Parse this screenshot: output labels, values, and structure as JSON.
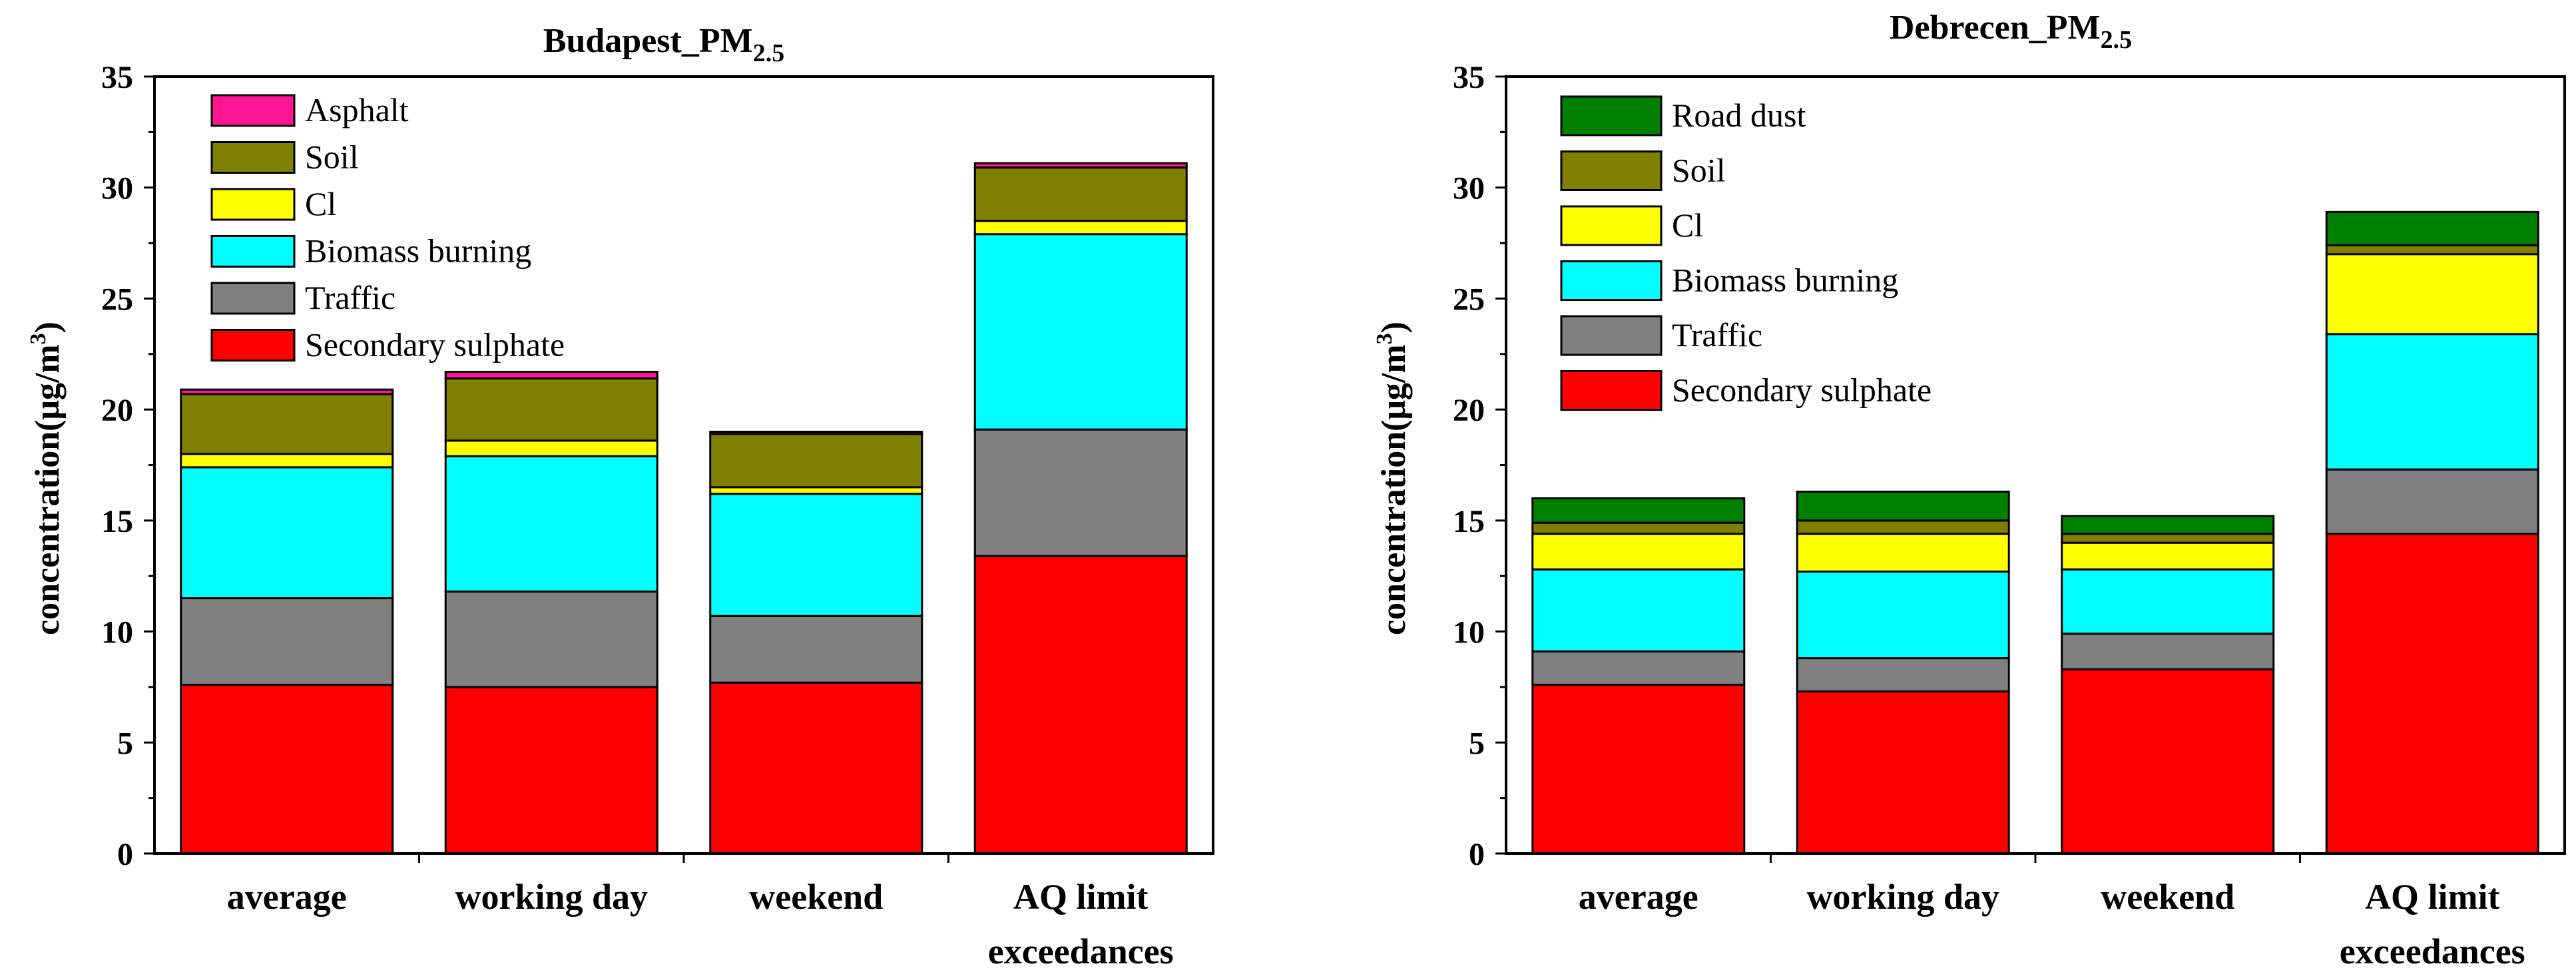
{
  "chart_data": [
    {
      "type": "bar",
      "stacked": true,
      "title": "Budapest_PM",
      "title_subscript": "2.5",
      "xlabel": "",
      "ylabel": "concentration(μg/m",
      "ylabel_superscript": "3",
      "ylabel_close": ")",
      "ylim": [
        0,
        35
      ],
      "yticks": [
        0,
        5,
        10,
        15,
        20,
        25,
        30,
        35
      ],
      "categories": [
        [
          "average"
        ],
        [
          "working day"
        ],
        [
          "weekend"
        ],
        [
          "AQ limit",
          "exceedances"
        ]
      ],
      "legend_position": "top-left",
      "series": [
        {
          "name": "Secondary sulphate",
          "color": "#ff0000",
          "values": [
            7.6,
            7.5,
            7.7,
            13.4
          ]
        },
        {
          "name": "Traffic",
          "color": "#808080",
          "values": [
            3.9,
            4.3,
            3.0,
            5.7
          ]
        },
        {
          "name": "Biomass burning",
          "color": "#00ffff",
          "values": [
            5.9,
            6.1,
            5.5,
            8.8
          ]
        },
        {
          "name": "Cl",
          "color": "#ffff00",
          "values": [
            0.6,
            0.7,
            0.3,
            0.6
          ]
        },
        {
          "name": "Soil",
          "color": "#808000",
          "values": [
            2.7,
            2.8,
            2.4,
            2.4
          ]
        },
        {
          "name": "Asphalt",
          "color": "#ff1493",
          "values": [
            0.2,
            0.3,
            0.1,
            0.2
          ]
        }
      ]
    },
    {
      "type": "bar",
      "stacked": true,
      "title": "Debrecen_PM",
      "title_subscript": "2.5",
      "xlabel": "",
      "ylabel": "concentration(μg/m",
      "ylabel_superscript": "3",
      "ylabel_close": ")",
      "ylim": [
        0,
        35
      ],
      "yticks": [
        0,
        5,
        10,
        15,
        20,
        25,
        30,
        35
      ],
      "categories": [
        [
          "average"
        ],
        [
          "working day"
        ],
        [
          "weekend"
        ],
        [
          "AQ limit",
          "exceedances"
        ]
      ],
      "legend_position": "top-left",
      "series": [
        {
          "name": "Secondary sulphate",
          "color": "#ff0000",
          "values": [
            7.6,
            7.3,
            8.3,
            14.4
          ]
        },
        {
          "name": "Traffic",
          "color": "#808080",
          "values": [
            1.5,
            1.5,
            1.6,
            2.9
          ]
        },
        {
          "name": "Biomass burning",
          "color": "#00ffff",
          "values": [
            3.7,
            3.9,
            2.9,
            6.1
          ]
        },
        {
          "name": "Cl",
          "color": "#ffff00",
          "values": [
            1.6,
            1.7,
            1.2,
            3.6
          ]
        },
        {
          "name": "Soil",
          "color": "#808000",
          "values": [
            0.5,
            0.6,
            0.4,
            0.4
          ]
        },
        {
          "name": "Road dust",
          "color": "#008000",
          "values": [
            1.1,
            1.3,
            0.8,
            1.5
          ]
        }
      ]
    }
  ]
}
